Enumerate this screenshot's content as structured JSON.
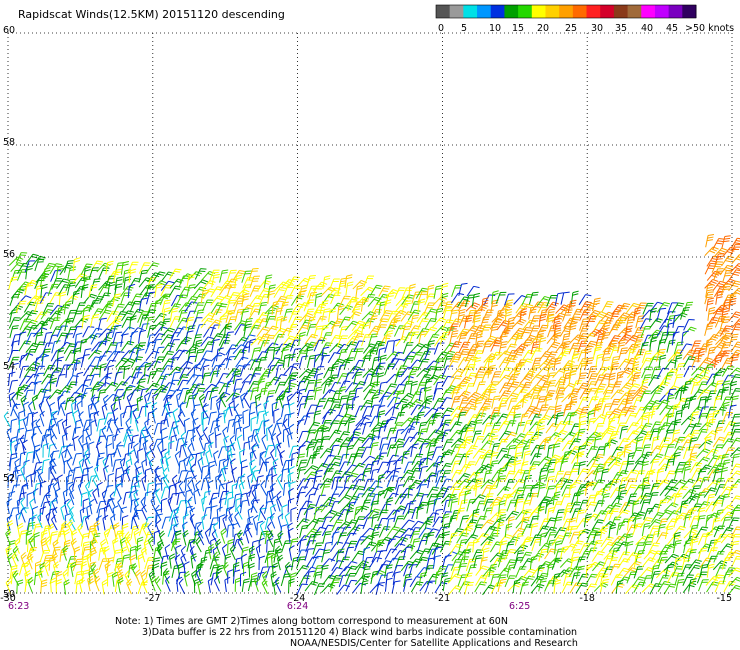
{
  "title": "Rapidscat Winds(12.5KM) 20151120 descending",
  "legend": {
    "labels": [
      "0",
      "5",
      "10",
      "15",
      "20",
      "25",
      "30",
      "35",
      "40",
      "45",
      ">50 knots"
    ],
    "colors": [
      "#555555",
      "#9a9a9a",
      "#00e0e6",
      "#0097ff",
      "#0030e0",
      "#00a000",
      "#24d800",
      "#ffff00",
      "#ffd000",
      "#ffa000",
      "#ff6a00",
      "#ff2020",
      "#d4002a",
      "#8a3a1a",
      "#a06a3a",
      "#ff00ff",
      "#c000ff",
      "#7a00c0",
      "#300060"
    ]
  },
  "chart_data": {
    "type": "scatter",
    "title": "Rapidscat Winds(12.5KM) 20151120 descending",
    "x_ticks": [
      "-30",
      "-27",
      "-24",
      "-21",
      "-18",
      "-15"
    ],
    "y_ticks": [
      "50",
      "52",
      "54",
      "56",
      "58",
      "60"
    ],
    "xlim": [
      -30,
      -15
    ],
    "ylim": [
      50,
      60
    ],
    "grid": true,
    "time_labels": [
      {
        "lon": -30,
        "label": "6:23"
      },
      {
        "lon": -24,
        "label": "6:24"
      },
      {
        "lon": -19.4,
        "label": "6:25"
      }
    ],
    "swath_edge": {
      "lat_west": 55.9,
      "lat_east": 55.0,
      "east_strip": {
        "lon_start": -15.9,
        "lat_top": 56.2
      }
    },
    "wind_regions": [
      {
        "lon": [
          -30,
          -26
        ],
        "lat": [
          54.6,
          55.9
        ],
        "speed_knots": 18
      },
      {
        "lon": [
          -26,
          -21
        ],
        "lat": [
          54.4,
          55.6
        ],
        "speed_knots": 22
      },
      {
        "lon": [
          -21,
          -17
        ],
        "lat": [
          54.0,
          55.1
        ],
        "speed_knots": 28
      },
      {
        "lon": [
          -21,
          -16
        ],
        "lat": [
          53.0,
          54.2
        ],
        "speed_knots": 25
      },
      {
        "lon": [
          -17,
          -15
        ],
        "lat": [
          52.6,
          54.0
        ],
        "speed_knots": 18
      },
      {
        "lon": [
          -30,
          -25
        ],
        "lat": [
          53.2,
          54.6
        ],
        "speed_knots": 14
      },
      {
        "lon": [
          -30,
          -24
        ],
        "lat": [
          51.0,
          53.2
        ],
        "speed_knots": 10
      },
      {
        "lon": [
          -24,
          -21
        ],
        "lat": [
          50.0,
          53.4
        ],
        "speed_knots": 15
      },
      {
        "lon": [
          -21,
          -15
        ],
        "lat": [
          50.0,
          53.0
        ],
        "speed_knots": 20
      },
      {
        "lon": [
          -30,
          -27
        ],
        "lat": [
          50.0,
          51.0
        ],
        "speed_knots": 22
      },
      {
        "lon": [
          -15.9,
          -15
        ],
        "lat": [
          54.0,
          56.2
        ],
        "speed_knots": 30
      }
    ]
  },
  "notes": {
    "line1": "Note: 1) Times are GMT 2)Times along bottom correspond to measurement at 60N",
    "line2": "3)Data buffer is 22 hrs from 20151120 4) Black wind barbs indicate possible contamination",
    "line3": "NOAA/NESDIS/Center for Satellite Applications and Research"
  }
}
